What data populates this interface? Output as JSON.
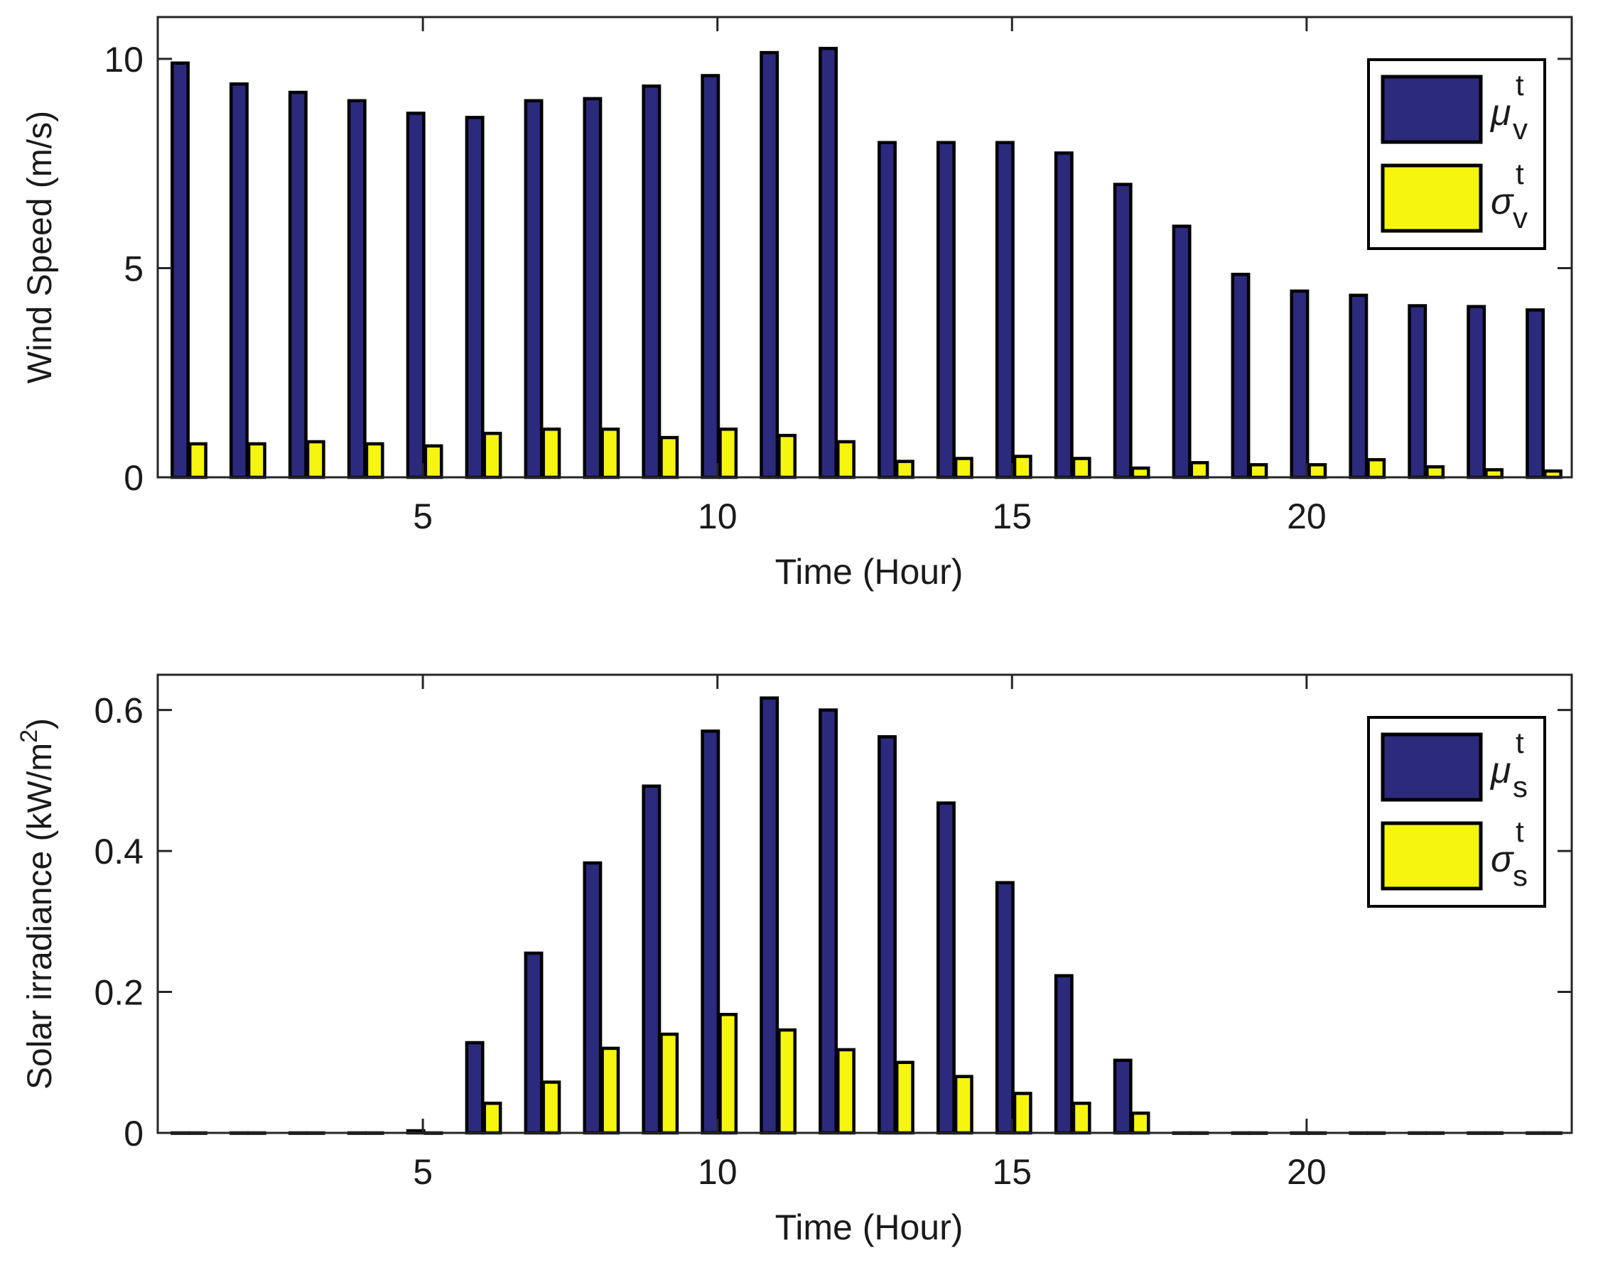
{
  "colors": {
    "mean": "#2b2a7d",
    "std": "#f5f50f",
    "axis": "#262626",
    "bar_edge": "#000000"
  },
  "chart_data": [
    {
      "type": "bar",
      "x": [
        1,
        2,
        3,
        4,
        5,
        6,
        7,
        8,
        9,
        10,
        11,
        12,
        13,
        14,
        15,
        16,
        17,
        18,
        19,
        20,
        21,
        22,
        23,
        24
      ],
      "xlim": [
        0.5,
        24.5
      ],
      "xticks": [
        5,
        10,
        15,
        20
      ],
      "xtick_labels": [
        "5",
        "10",
        "15",
        "20"
      ],
      "ylim": [
        0,
        11
      ],
      "yticks": [
        0,
        5,
        10
      ],
      "ytick_labels": [
        "0",
        "5",
        "10"
      ],
      "xlabel": "Time (Hour)",
      "ylabel": "Wind Speed (m/s)",
      "grid": false,
      "legend_position": "top-right",
      "series": [
        {
          "name": "μ",
          "sup": "t",
          "sub": "v",
          "color_key": "mean",
          "values": [
            9.9,
            9.4,
            9.2,
            9.0,
            8.7,
            8.6,
            9.0,
            9.05,
            9.35,
            9.6,
            10.15,
            10.25,
            8.0,
            8.0,
            8.0,
            7.75,
            7.0,
            6.0,
            4.85,
            4.45,
            4.35,
            4.1,
            4.08,
            4.0
          ]
        },
        {
          "name": "σ",
          "sup": "t",
          "sub": "v",
          "color_key": "std",
          "values": [
            0.8,
            0.8,
            0.85,
            0.8,
            0.75,
            1.05,
            1.15,
            1.15,
            0.95,
            1.15,
            1.0,
            0.85,
            0.38,
            0.45,
            0.5,
            0.45,
            0.22,
            0.35,
            0.3,
            0.3,
            0.42,
            0.25,
            0.18,
            0.15
          ]
        }
      ]
    },
    {
      "type": "bar",
      "x": [
        1,
        2,
        3,
        4,
        5,
        6,
        7,
        8,
        9,
        10,
        11,
        12,
        13,
        14,
        15,
        16,
        17,
        18,
        19,
        20,
        21,
        22,
        23,
        24
      ],
      "xlim": [
        0.5,
        24.5
      ],
      "xticks": [
        5,
        10,
        15,
        20
      ],
      "xtick_labels": [
        "5",
        "10",
        "15",
        "20"
      ],
      "ylim": [
        0,
        0.65
      ],
      "yticks": [
        0,
        0.2,
        0.4,
        0.6
      ],
      "ytick_labels": [
        "0",
        "0.2",
        "0.4",
        "0.6"
      ],
      "xlabel": "Time (Hour)",
      "ylabel": "Solar irradiance (kW/m",
      "ylabel_sup": "2",
      "ylabel_tail": ")",
      "grid": false,
      "legend_position": "top-right",
      "series": [
        {
          "name": "μ",
          "sup": "t",
          "sub": "s",
          "color_key": "mean",
          "values": [
            0,
            0,
            0,
            0,
            0.003,
            0.128,
            0.255,
            0.383,
            0.492,
            0.57,
            0.617,
            0.6,
            0.562,
            0.468,
            0.355,
            0.223,
            0.103,
            0,
            0,
            0,
            0,
            0,
            0,
            0
          ]
        },
        {
          "name": "σ",
          "sup": "t",
          "sub": "s",
          "color_key": "std",
          "values": [
            0,
            0,
            0,
            0,
            0,
            0.042,
            0.072,
            0.12,
            0.14,
            0.168,
            0.146,
            0.118,
            0.1,
            0.08,
            0.056,
            0.042,
            0.028,
            0,
            0,
            0,
            0,
            0,
            0,
            0
          ]
        }
      ]
    }
  ]
}
